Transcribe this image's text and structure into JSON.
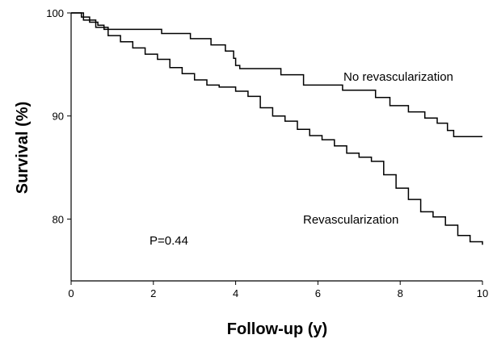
{
  "chart_data": {
    "type": "line",
    "title": "",
    "xlabel": "Follow-up (y)",
    "ylabel": "Survival (%)",
    "xlim": [
      0,
      10
    ],
    "ylim": [
      74,
      100
    ],
    "xticks": [
      0,
      2,
      4,
      6,
      8,
      10
    ],
    "yticks": [
      80,
      90,
      100
    ],
    "grid": false,
    "curve_style": "step",
    "series": [
      {
        "name": "No revascularization",
        "x": [
          0,
          0.25,
          0.45,
          0.65,
          0.8,
          2.2,
          2.9,
          3.4,
          3.75,
          3.95,
          4.0,
          4.1,
          5.1,
          5.65,
          6.6,
          7.4,
          7.75,
          8.2,
          8.6,
          8.9,
          9.15,
          9.3,
          10
        ],
        "y": [
          100,
          99.6,
          99.1,
          98.8,
          98.4,
          98.0,
          97.5,
          96.9,
          96.3,
          95.6,
          94.9,
          94.6,
          94.0,
          93.0,
          92.5,
          91.8,
          91.0,
          90.4,
          89.8,
          89.3,
          88.6,
          88.0,
          88.0
        ],
        "end_label": "No revascularization"
      },
      {
        "name": "Revascularization",
        "x": [
          0,
          0.3,
          0.6,
          0.9,
          1.2,
          1.5,
          1.8,
          2.1,
          2.4,
          2.7,
          3.0,
          3.3,
          3.6,
          4.0,
          4.3,
          4.6,
          4.9,
          5.2,
          5.5,
          5.8,
          6.1,
          6.4,
          6.7,
          7.0,
          7.3,
          7.6,
          7.9,
          8.2,
          8.5,
          8.8,
          9.1,
          9.4,
          9.7,
          10.0
        ],
        "y": [
          100,
          99.3,
          98.6,
          97.8,
          97.2,
          96.6,
          96.0,
          95.5,
          94.7,
          94.1,
          93.5,
          93.0,
          92.8,
          92.4,
          91.9,
          90.8,
          90.0,
          89.5,
          88.7,
          88.1,
          87.7,
          87.1,
          86.4,
          86.0,
          85.6,
          84.3,
          83.0,
          81.9,
          80.7,
          80.2,
          79.4,
          78.4,
          77.8,
          77.5
        ],
        "end_label": "Revascularization"
      }
    ],
    "annotations": [
      "P=0.44"
    ]
  }
}
